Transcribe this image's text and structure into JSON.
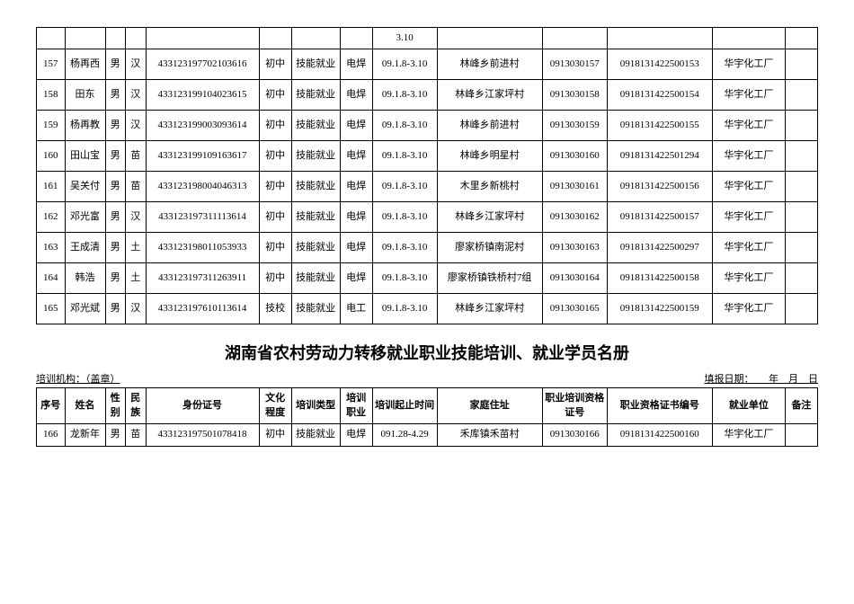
{
  "topTable": {
    "partialRow": {
      "col8": "3.10"
    },
    "rows": [
      {
        "seq": "157",
        "name": "杨再西",
        "sex": "男",
        "eth": "汉",
        "id": "433123197702103616",
        "edu": "初中",
        "ttype": "技能就业",
        "tjob": "电焊",
        "ttime": "09.1.8-3.10",
        "addr": "林峰乡前进村",
        "trid": "0913030157",
        "cert": "0918131422500153",
        "unit": "华宇化工厂",
        "remark": ""
      },
      {
        "seq": "158",
        "name": "田东",
        "sex": "男",
        "eth": "汉",
        "id": "433123199104023615",
        "edu": "初中",
        "ttype": "技能就业",
        "tjob": "电焊",
        "ttime": "09.1.8-3.10",
        "addr": "林峰乡江家坪村",
        "trid": "0913030158",
        "cert": "0918131422500154",
        "unit": "华宇化工厂",
        "remark": ""
      },
      {
        "seq": "159",
        "name": "杨再教",
        "sex": "男",
        "eth": "汉",
        "id": "433123199003093614",
        "edu": "初中",
        "ttype": "技能就业",
        "tjob": "电焊",
        "ttime": "09.1.8-3.10",
        "addr": "林峰乡前进村",
        "trid": "0913030159",
        "cert": "0918131422500155",
        "unit": "华宇化工厂",
        "remark": ""
      },
      {
        "seq": "160",
        "name": "田山宝",
        "sex": "男",
        "eth": "苗",
        "id": "433123199109163617",
        "edu": "初中",
        "ttype": "技能就业",
        "tjob": "电焊",
        "ttime": "09.1.8-3.10",
        "addr": "林峰乡明星村",
        "trid": "0913030160",
        "cert": "0918131422501294",
        "unit": "华宇化工厂",
        "remark": ""
      },
      {
        "seq": "161",
        "name": "吴关付",
        "sex": "男",
        "eth": "苗",
        "id": "433123198004046313",
        "edu": "初中",
        "ttype": "技能就业",
        "tjob": "电焊",
        "ttime": "09.1.8-3.10",
        "addr": "木里乡新桃村",
        "trid": "0913030161",
        "cert": "0918131422500156",
        "unit": "华宇化工厂",
        "remark": ""
      },
      {
        "seq": "162",
        "name": "邓光富",
        "sex": "男",
        "eth": "汉",
        "id": "433123197311113614",
        "edu": "初中",
        "ttype": "技能就业",
        "tjob": "电焊",
        "ttime": "09.1.8-3.10",
        "addr": "林峰乡江家坪村",
        "trid": "0913030162",
        "cert": "0918131422500157",
        "unit": "华宇化工厂",
        "remark": ""
      },
      {
        "seq": "163",
        "name": "王成清",
        "sex": "男",
        "eth": "土",
        "id": "433123198011053933",
        "edu": "初中",
        "ttype": "技能就业",
        "tjob": "电焊",
        "ttime": "09.1.8-3.10",
        "addr": "廖家桥镇南泥村",
        "trid": "0913030163",
        "cert": "0918131422500297",
        "unit": "华宇化工厂",
        "remark": ""
      },
      {
        "seq": "164",
        "name": "韩浩",
        "sex": "男",
        "eth": "土",
        "id": "433123197311263911",
        "edu": "初中",
        "ttype": "技能就业",
        "tjob": "电焊",
        "ttime": "09.1.8-3.10",
        "addr": "廖家桥镇铁桥村7组",
        "trid": "0913030164",
        "cert": "0918131422500158",
        "unit": "华宇化工厂",
        "remark": ""
      },
      {
        "seq": "165",
        "name": "邓光斌",
        "sex": "男",
        "eth": "汉",
        "id": "433123197610113614",
        "edu": "技校",
        "ttype": "技能就业",
        "tjob": "电工",
        "ttime": "09.1.8-3.10",
        "addr": "林峰乡江家坪村",
        "trid": "0913030165",
        "cert": "0918131422500159",
        "unit": "华宇化工厂",
        "remark": ""
      }
    ]
  },
  "sectionTitle": "湖南省农村劳动力转移就业职业技能培训、就业学员名册",
  "metaLeft": "培训机构：（盖章）",
  "metaRight": "填报日期：　　年　月　日",
  "bottomTable": {
    "headers": {
      "seq": "序号",
      "name": "姓名",
      "sex": "性别",
      "eth": "民族",
      "id": "身份证号",
      "edu": "文化程度",
      "ttype": "培训类型",
      "tjob": "培训职业",
      "ttime": "培训起止时间",
      "addr": "家庭住址",
      "trid": "职业培训资格证号",
      "cert": "职业资格证书编号",
      "unit": "就业单位",
      "remark": "备注"
    },
    "rows": [
      {
        "seq": "166",
        "name": "龙新年",
        "sex": "男",
        "eth": "苗",
        "id": "433123197501078418",
        "edu": "初中",
        "ttype": "技能就业",
        "tjob": "电焊",
        "ttime": "091.28-4.29",
        "addr": "禾库镇禾苗村",
        "trid": "0913030166",
        "cert": "0918131422500160",
        "unit": "华宇化工厂",
        "remark": ""
      }
    ]
  }
}
